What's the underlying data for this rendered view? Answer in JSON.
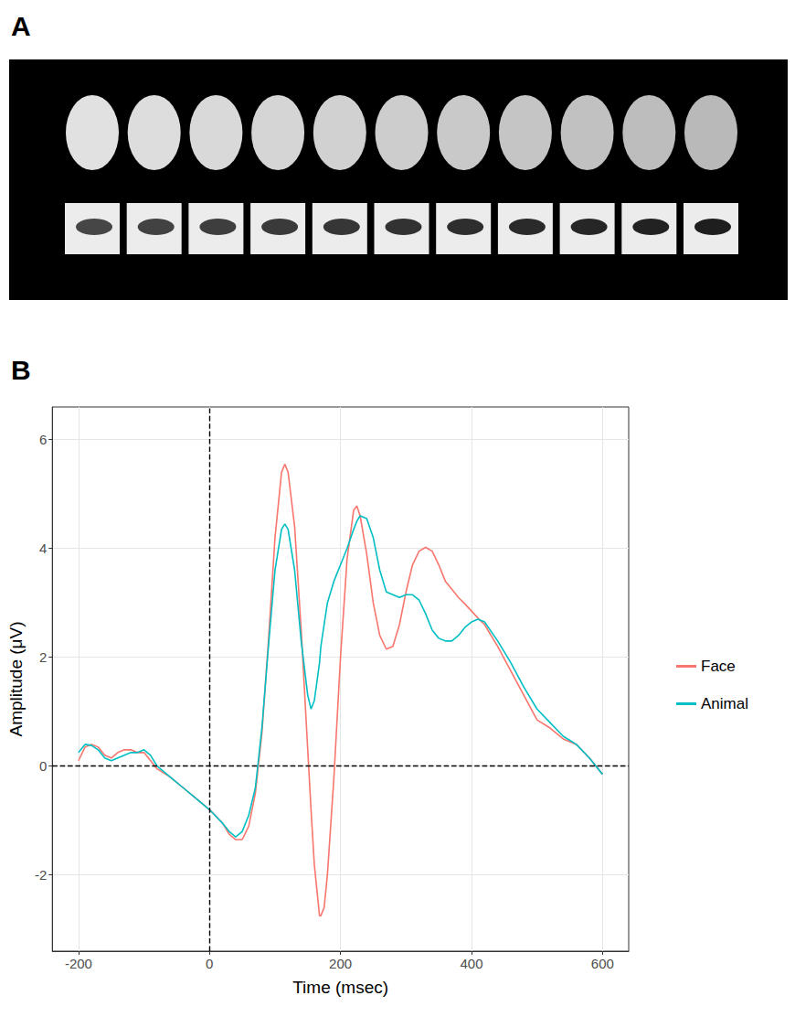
{
  "panels": [
    "A",
    "B"
  ],
  "chart_data": {
    "type": "line",
    "x_label": "Time (msec)",
    "y_label": "Amplitude (μV)",
    "x": [
      -200,
      -190,
      -180,
      -170,
      -160,
      -150,
      -140,
      -130,
      -120,
      -110,
      -100,
      -90,
      -80,
      -60,
      -40,
      -20,
      0,
      20,
      30,
      40,
      50,
      60,
      70,
      80,
      90,
      100,
      110,
      115,
      120,
      130,
      140,
      150,
      155,
      160,
      168,
      170,
      175,
      180,
      190,
      200,
      210,
      220,
      225,
      230,
      240,
      250,
      260,
      270,
      280,
      290,
      300,
      310,
      320,
      330,
      340,
      350,
      360,
      370,
      380,
      390,
      400,
      410,
      420,
      440,
      460,
      480,
      500,
      520,
      540,
      560,
      580,
      600
    ],
    "series": [
      {
        "name": "Face",
        "color": "#F8766D",
        "values": [
          0.1,
          0.35,
          0.4,
          0.35,
          0.2,
          0.15,
          0.25,
          0.3,
          0.3,
          0.25,
          0.25,
          0.1,
          -0.05,
          -0.2,
          -0.4,
          -0.6,
          -0.8,
          -1.05,
          -1.25,
          -1.35,
          -1.35,
          -1.1,
          -0.5,
          0.6,
          2.3,
          4.2,
          5.4,
          5.55,
          5.4,
          4.4,
          2.5,
          0.3,
          -0.8,
          -1.8,
          -2.75,
          -2.75,
          -2.6,
          -2.0,
          -0.2,
          2.0,
          3.8,
          4.7,
          4.78,
          4.6,
          3.9,
          3.0,
          2.4,
          2.15,
          2.2,
          2.6,
          3.2,
          3.7,
          3.95,
          4.02,
          3.95,
          3.7,
          3.4,
          3.25,
          3.1,
          2.98,
          2.85,
          2.72,
          2.6,
          2.2,
          1.75,
          1.3,
          0.85,
          0.7,
          0.5,
          0.4,
          0.15,
          -0.15
        ]
      },
      {
        "name": "Animal",
        "color": "#00BFC4",
        "values": [
          0.25,
          0.4,
          0.38,
          0.3,
          0.15,
          0.1,
          0.15,
          0.2,
          0.25,
          0.25,
          0.3,
          0.2,
          0.0,
          -0.2,
          -0.4,
          -0.6,
          -0.8,
          -1.05,
          -1.2,
          -1.3,
          -1.2,
          -0.9,
          -0.4,
          0.7,
          2.2,
          3.6,
          4.35,
          4.45,
          4.35,
          3.6,
          2.3,
          1.3,
          1.05,
          1.2,
          1.9,
          2.2,
          2.6,
          3.0,
          3.4,
          3.7,
          4.0,
          4.35,
          4.5,
          4.6,
          4.55,
          4.2,
          3.6,
          3.2,
          3.15,
          3.1,
          3.15,
          3.15,
          3.05,
          2.8,
          2.5,
          2.35,
          2.3,
          2.3,
          2.4,
          2.55,
          2.65,
          2.7,
          2.65,
          2.3,
          1.9,
          1.45,
          1.05,
          0.8,
          0.55,
          0.4,
          0.15,
          -0.15
        ]
      }
    ],
    "xlim": [
      -240,
      640
    ],
    "xticks": [
      -200,
      0,
      200,
      400,
      600
    ],
    "ylim": [
      -3.4,
      6.6
    ],
    "yticks": [
      -2,
      0,
      2,
      4,
      6
    ],
    "vlines": [
      0
    ],
    "hlines": [
      0
    ],
    "grid": true,
    "legend": "right",
    "line_style": "solid"
  }
}
